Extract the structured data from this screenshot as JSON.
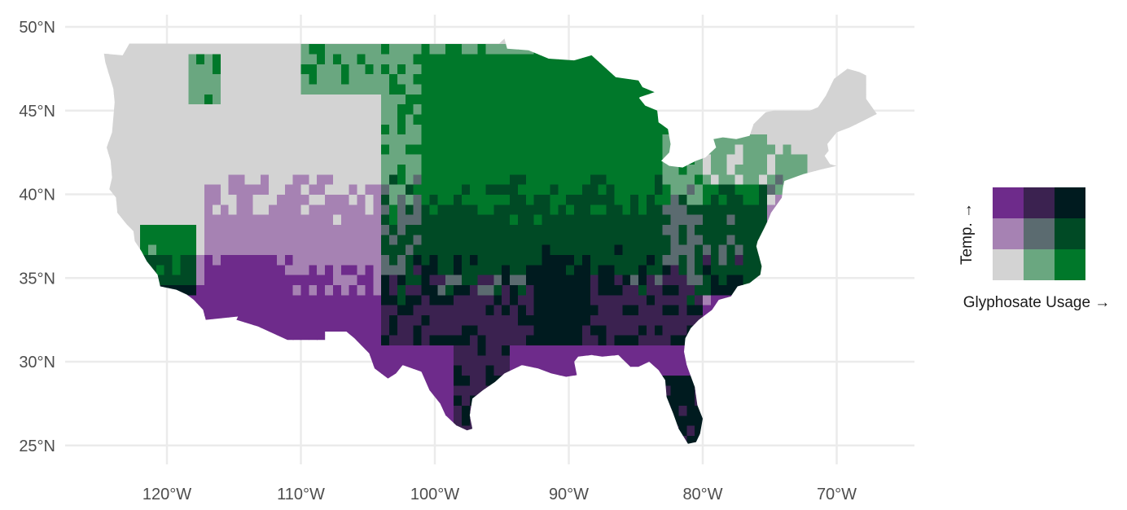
{
  "map": {
    "projection": "equirectangular",
    "lat_ticks": [
      {
        "value": 50,
        "label": "50°N"
      },
      {
        "value": 45,
        "label": "45°N"
      },
      {
        "value": 40,
        "label": "40°N"
      },
      {
        "value": 35,
        "label": "35°N"
      },
      {
        "value": 30,
        "label": "30°N"
      },
      {
        "value": 25,
        "label": "25°N"
      }
    ],
    "lon_ticks": [
      {
        "value": -120,
        "label": "120°W"
      },
      {
        "value": -110,
        "label": "110°W"
      },
      {
        "value": -100,
        "label": "100°W"
      },
      {
        "value": -90,
        "label": "90°W"
      },
      {
        "value": -80,
        "label": "80°W"
      },
      {
        "value": -70,
        "label": "70°W"
      }
    ],
    "lon_range": [
      -128,
      -65
    ],
    "lat_range": [
      23.5,
      51
    ],
    "background": "#ffffff",
    "grid": true
  },
  "legend": {
    "type": "bivariate 3x3",
    "y_label": "Temp. →",
    "x_label": "Glyphosate Usage →",
    "grid": [
      [
        "#6e2b8b",
        "#3b2250",
        "#001b1f"
      ],
      [
        "#a682b3",
        "#5b6b70",
        "#004a25"
      ],
      [
        "#d3d3d3",
        "#6aa780",
        "#00782a"
      ]
    ]
  },
  "palette": {
    "low_temp_low_gly": "#d3d3d3",
    "low_temp_mid_gly": "#6aa780",
    "low_temp_high_gly": "#00782a",
    "mid_temp_low_gly": "#a682b3",
    "mid_temp_mid_gly": "#5b6b70",
    "mid_temp_high_gly": "#004a25",
    "high_temp_low_gly": "#6e2b8b",
    "high_temp_mid_gly": "#3b2250",
    "high_temp_high_gly": "#001b1f"
  }
}
